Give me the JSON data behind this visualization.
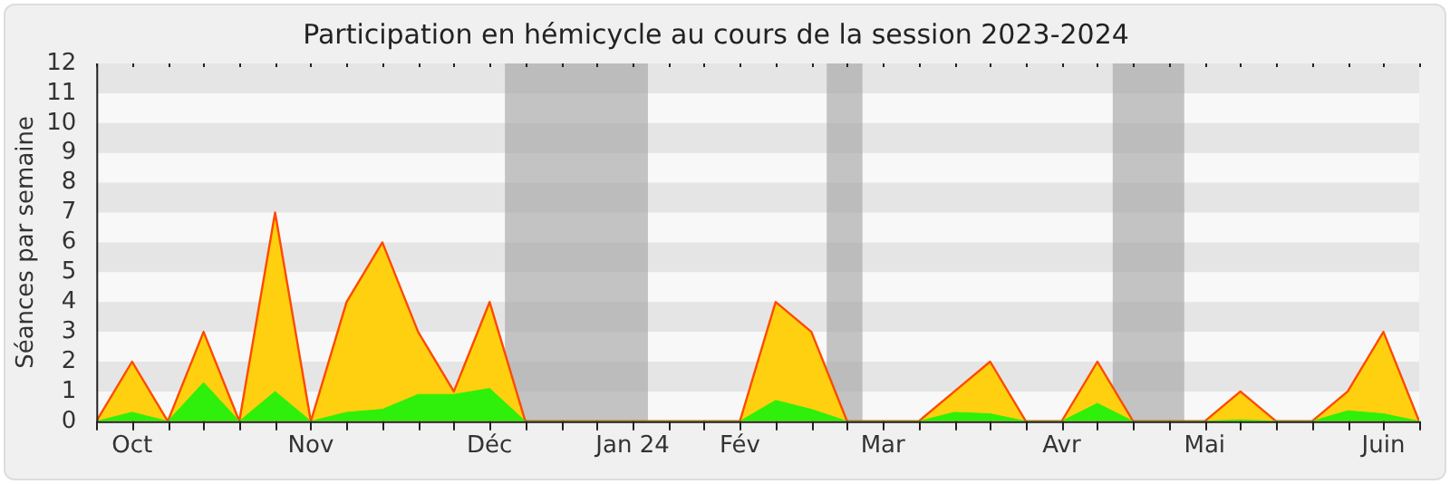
{
  "chart_data": {
    "type": "area",
    "title": "Participation en hémicycle au cours de la session 2023-2024",
    "ylabel": "Séances par semaine",
    "x": [
      "2023-09-29",
      "2023-10-06",
      "2023-10-13",
      "2023-10-20",
      "2023-10-27",
      "2023-11-03",
      "2023-11-10",
      "2023-11-17",
      "2023-11-24",
      "2023-12-01",
      "2023-12-08",
      "2023-12-15",
      "2023-12-22",
      "2023-12-29",
      "2024-01-05",
      "2024-01-12",
      "2024-01-19",
      "2024-01-26",
      "2024-02-02",
      "2024-02-09",
      "2024-02-16",
      "2024-02-23",
      "2024-03-01",
      "2024-03-08",
      "2024-03-15",
      "2024-03-22",
      "2024-03-29",
      "2024-04-05",
      "2024-04-12",
      "2024-04-19",
      "2024-04-26",
      "2024-05-03",
      "2024-05-10",
      "2024-05-17",
      "2024-05-24",
      "2024-05-31",
      "2024-06-07",
      "2024-06-14"
    ],
    "series": [
      {
        "color": "#ffd010",
        "values": [
          0,
          2,
          0,
          3,
          0,
          7,
          0,
          4,
          6,
          3,
          1,
          4,
          0,
          0,
          0,
          0,
          0,
          0,
          0,
          4,
          3,
          0,
          0,
          0,
          1,
          2,
          0,
          0,
          2,
          0,
          0,
          0,
          1,
          0,
          0,
          1,
          3,
          0
        ]
      },
      {
        "color": "#2ef00a",
        "values": [
          0,
          0.3,
          0,
          1.3,
          0,
          1,
          0,
          0.3,
          0.4,
          0.9,
          0.9,
          1.1,
          0,
          0,
          0,
          0,
          0,
          0,
          0,
          0.7,
          0.4,
          0,
          0,
          0,
          0.3,
          0.25,
          0,
          0,
          0.6,
          0,
          0,
          0,
          0.05,
          0,
          0,
          0.35,
          0.25,
          0
        ]
      }
    ],
    "xlim": [
      "2023-09-29",
      "2024-06-14"
    ],
    "xticks": [
      {
        "value": "2023-09-29",
        "label": null
      },
      {
        "value": "2023-10-06",
        "label": "Oct"
      },
      {
        "value": "2023-10-13",
        "label": null
      },
      {
        "value": "2023-10-20",
        "label": null
      },
      {
        "value": "2023-10-27",
        "label": null
      },
      {
        "value": "2023-11-03",
        "label": null
      },
      {
        "value": "2023-11-10",
        "label": "Nov"
      },
      {
        "value": "2023-11-17",
        "label": null
      },
      {
        "value": "2023-11-24",
        "label": null
      },
      {
        "value": "2023-12-01",
        "label": null
      },
      {
        "value": "2023-12-08",
        "label": null
      },
      {
        "value": "2023-12-15",
        "label": "Déc"
      },
      {
        "value": "2023-12-22",
        "label": null
      },
      {
        "value": "2023-12-29",
        "label": null
      },
      {
        "value": "2024-01-05",
        "label": null
      },
      {
        "value": "2024-01-12",
        "label": "Jan 24"
      },
      {
        "value": "2024-01-19",
        "label": null
      },
      {
        "value": "2024-01-26",
        "label": null
      },
      {
        "value": "2024-02-02",
        "label": "Fév"
      },
      {
        "value": "2024-02-09",
        "label": null
      },
      {
        "value": "2024-02-16",
        "label": null
      },
      {
        "value": "2024-02-23",
        "label": null
      },
      {
        "value": "2024-03-01",
        "label": "Mar"
      },
      {
        "value": "2024-03-08",
        "label": null
      },
      {
        "value": "2024-03-15",
        "label": null
      },
      {
        "value": "2024-03-22",
        "label": null
      },
      {
        "value": "2024-03-29",
        "label": null
      },
      {
        "value": "2024-04-05",
        "label": "Avr"
      },
      {
        "value": "2024-04-12",
        "label": null
      },
      {
        "value": "2024-04-19",
        "label": null
      },
      {
        "value": "2024-04-26",
        "label": null
      },
      {
        "value": "2024-05-03",
        "label": "Mai"
      },
      {
        "value": "2024-05-10",
        "label": null
      },
      {
        "value": "2024-05-17",
        "label": null
      },
      {
        "value": "2024-05-24",
        "label": null
      },
      {
        "value": "2024-05-31",
        "label": null
      },
      {
        "value": "2024-06-07",
        "label": "Juin"
      },
      {
        "value": "2024-06-14",
        "label": null
      }
    ],
    "ylim": [
      0,
      12
    ],
    "yticks": [
      0,
      1,
      2,
      3,
      4,
      5,
      6,
      7,
      8,
      9,
      10,
      11,
      12
    ],
    "bands": [
      {
        "axis": "x",
        "from": "2023-12-18",
        "to": "2024-01-15",
        "color": "#a0a0a0"
      },
      {
        "axis": "x",
        "from": "2024-02-19",
        "to": "2024-02-26",
        "color": "#a0a0a0"
      },
      {
        "axis": "x",
        "from": "2024-04-15",
        "to": "2024-04-29",
        "color": "#a0a0a0"
      }
    ],
    "legend": false,
    "marker": "none",
    "line_style": "solid"
  }
}
